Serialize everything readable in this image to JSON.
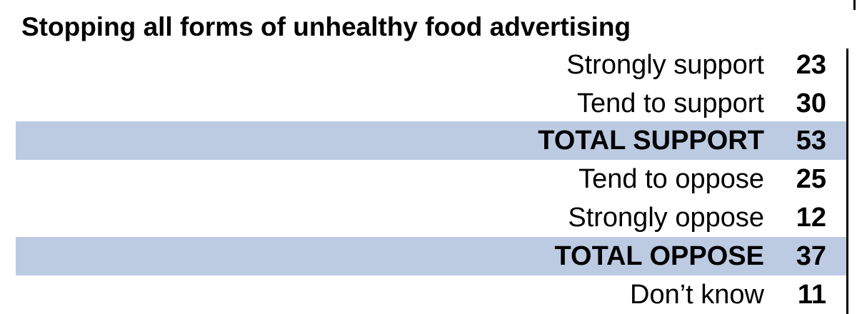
{
  "title": "Stopping all forms of unhealthy food advertising",
  "rows": [
    {
      "label": "Strongly support",
      "value": "23",
      "total": false
    },
    {
      "label": "Tend to support",
      "value": "30",
      "total": false
    },
    {
      "label": "TOTAL SUPPORT",
      "value": "53",
      "total": true
    },
    {
      "label": "Tend to oppose",
      "value": "25",
      "total": false
    },
    {
      "label": "Strongly oppose",
      "value": "12",
      "total": false
    },
    {
      "label": "TOTAL OPPOSE",
      "value": "37",
      "total": true
    },
    {
      "label": "Don’t know",
      "value": "11",
      "total": false
    }
  ],
  "colors": {
    "total_row_background": "#bccbe2"
  }
}
